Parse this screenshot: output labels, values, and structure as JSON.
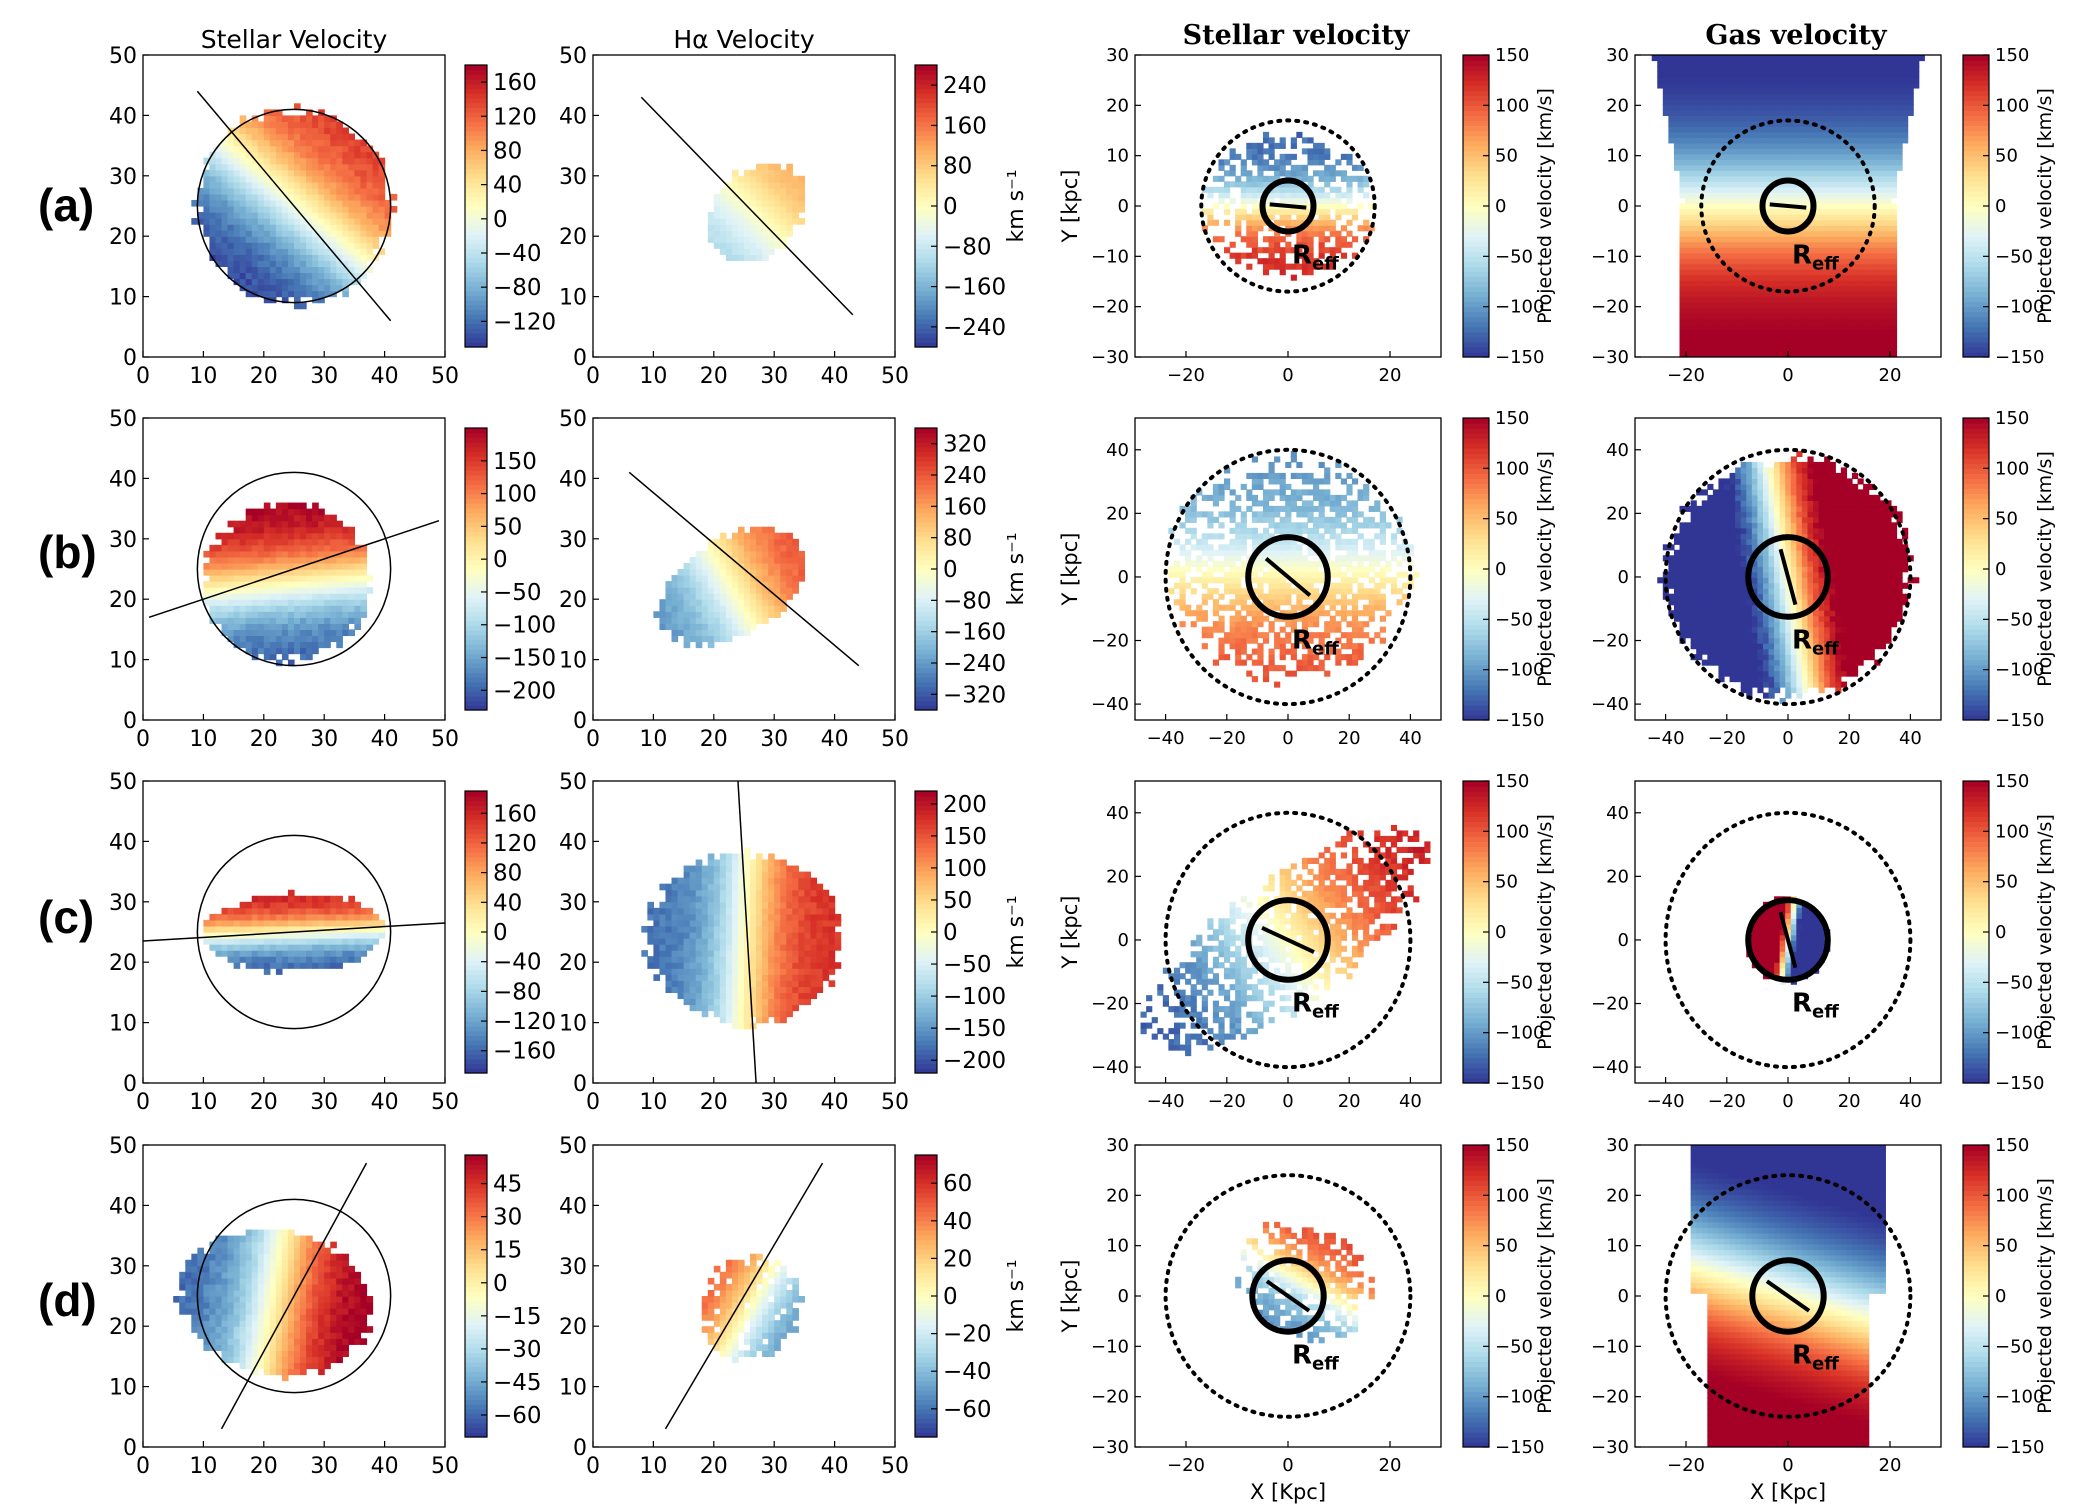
{
  "figure": {
    "row_labels": [
      "(a)",
      "(b)",
      "(c)",
      "(d)"
    ],
    "column_titles": [
      "Stellar Velocity",
      "Hα Velocity",
      "Stellar velocity",
      "Gas velocity"
    ],
    "pixel_axis_ticks": [
      "0",
      "10",
      "20",
      "30",
      "40",
      "50"
    ],
    "manga_colorbar_label": "km s⁻¹",
    "sim_colorbar_label": "Projected velocity [km/s]",
    "sim_colorbar_ticks": [
      "150",
      "100",
      "50",
      "0",
      "−50",
      "−100",
      "−150"
    ],
    "sim_ylabel": "Y [kpc]",
    "sim_xlabel": "X [Kpc]",
    "reff_label": "R",
    "reff_sub": "eff"
  },
  "chart_data": [
    {
      "id": "a1",
      "type": "heatmap",
      "row": "(a)",
      "title": "Stellar Velocity",
      "xlim": [
        0,
        50
      ],
      "ylim": [
        0,
        50
      ],
      "xticks": [
        "0",
        "10",
        "20",
        "30",
        "40",
        "50"
      ],
      "yticks": [
        "0",
        "10",
        "20",
        "30",
        "40",
        "50"
      ],
      "colorbar_ticks": [
        "160",
        "120",
        "80",
        "40",
        "0",
        "−40",
        "−80",
        "−120"
      ],
      "colorbar_range": [
        -150,
        180
      ],
      "colorbar_label": "",
      "circle": {
        "cx": 25,
        "cy": 25,
        "r": 16
      },
      "pa_line": [
        [
          9,
          44
        ],
        [
          41,
          6
        ]
      ],
      "map": {
        "cx": 25,
        "cy": 25,
        "rx": 16,
        "ry": 16,
        "angle": 50,
        "vmax": 150,
        "sig": 0.6,
        "q": 0.5
      }
    },
    {
      "id": "a2",
      "type": "heatmap",
      "row": "(a)",
      "title": "Hα Velocity",
      "xlim": [
        0,
        50
      ],
      "ylim": [
        0,
        50
      ],
      "xticks": [
        "0",
        "10",
        "20",
        "30",
        "40",
        "50"
      ],
      "yticks": [
        "0",
        "10",
        "20",
        "30",
        "40",
        "50"
      ],
      "colorbar_ticks": [
        "240",
        "160",
        "80",
        "0",
        "−80",
        "−160",
        "−240"
      ],
      "colorbar_range": [
        -280,
        280
      ],
      "colorbar_label": "km s⁻¹",
      "pa_line": [
        [
          8,
          43
        ],
        [
          43,
          7
        ]
      ],
      "map": {
        "cx": 27,
        "cy": 24,
        "rx": 9,
        "ry": 7,
        "angle": 45,
        "vmax": 130,
        "sig": 0.9,
        "q": 0.45,
        "tilt": 35
      }
    },
    {
      "id": "a3",
      "type": "heatmap",
      "row": "(a)",
      "title": "Stellar velocity",
      "xlim": [
        -30,
        30
      ],
      "ylim": [
        -30,
        30
      ],
      "xticks": [
        "−20",
        "0",
        "20"
      ],
      "yticks": [
        "30",
        "20",
        "10",
        "0",
        "−10",
        "−20",
        "−30"
      ],
      "colorbar_ticks": [
        "150",
        "100",
        "50",
        "0",
        "−50",
        "−100",
        "−150"
      ],
      "colorbar_range": [
        -150,
        150
      ],
      "colorbar_label": "Projected velocity [km/s]",
      "dotted_circle_r": 17,
      "reff_r": 5,
      "reff_angle": -5,
      "ylabel": "Y [kpc]",
      "map": {
        "cx": 0,
        "cy": 0,
        "rx": 14,
        "ry": 17,
        "angle": -90,
        "vmax": 130,
        "sig": 0.5,
        "q": 0.7
      }
    },
    {
      "id": "a4",
      "type": "heatmap",
      "row": "(a)",
      "title": "Gas velocity",
      "xlim": [
        -30,
        30
      ],
      "ylim": [
        -30,
        30
      ],
      "xticks": [
        "−20",
        "0",
        "20"
      ],
      "yticks": [
        "30",
        "20",
        "10",
        "0",
        "−10",
        "−20",
        "−30"
      ],
      "colorbar_ticks": [
        "150",
        "100",
        "50",
        "0",
        "−50",
        "−100",
        "−150"
      ],
      "colorbar_range": [
        -150,
        150
      ],
      "colorbar_label": "Projected velocity [km/s]",
      "dotted_circle_r": 17,
      "reff_r": 5,
      "reff_angle": -5,
      "map": {
        "type": "gas",
        "angle": -90,
        "vmax": 160,
        "sig": 0.4,
        "q": 0.5
      }
    },
    {
      "id": "b1",
      "type": "heatmap",
      "row": "(b)",
      "title": "Stellar Velocity",
      "xlim": [
        0,
        50
      ],
      "ylim": [
        0,
        50
      ],
      "xticks": [
        "0",
        "10",
        "20",
        "30",
        "40",
        "50"
      ],
      "yticks": [
        "0",
        "10",
        "20",
        "30",
        "40",
        "50"
      ],
      "colorbar_ticks": [
        "150",
        "100",
        "50",
        "0",
        "−50",
        "−100",
        "−150",
        "−200"
      ],
      "colorbar_range": [
        -230,
        200
      ],
      "colorbar_label": "",
      "circle": {
        "cx": 25,
        "cy": 25,
        "r": 16
      },
      "pa_line": [
        [
          1,
          17
        ],
        [
          49,
          33
        ]
      ],
      "map": {
        "cx": 24,
        "cy": 23,
        "rx": 13,
        "ry": 14,
        "angle": 95,
        "vmax": 210,
        "sig": 0.6,
        "q": 0.5
      }
    },
    {
      "id": "b2",
      "type": "heatmap",
      "row": "(b)",
      "title": "Hα Velocity",
      "xlim": [
        0,
        50
      ],
      "ylim": [
        0,
        50
      ],
      "xticks": [
        "0",
        "10",
        "20",
        "30",
        "40",
        "50"
      ],
      "yticks": [
        "0",
        "10",
        "20",
        "30",
        "40",
        "50"
      ],
      "colorbar_ticks": [
        "320",
        "240",
        "160",
        "80",
        "0",
        "−80",
        "−160",
        "−240",
        "−320"
      ],
      "colorbar_range": [
        -360,
        360
      ],
      "colorbar_label": "km s⁻¹",
      "pa_line": [
        [
          6,
          41
        ],
        [
          44,
          9
        ]
      ],
      "map": {
        "cx": 23,
        "cy": 22,
        "rx": 13,
        "ry": 8,
        "angle": 30,
        "vmax": 270,
        "sig": 0.7,
        "q": 0.45,
        "tilt": 35
      }
    },
    {
      "id": "b3",
      "type": "heatmap",
      "row": "(b)",
      "title": "Stellar velocity",
      "xlim": [
        -50,
        50
      ],
      "ylim": [
        -45,
        50
      ],
      "xticks": [
        "−40",
        "−20",
        "0",
        "20",
        "40"
      ],
      "yticks": [
        "40",
        "20",
        "0",
        "−20",
        "−40"
      ],
      "colorbar_ticks": [
        "150",
        "100",
        "50",
        "0",
        "−50",
        "−100",
        "−150"
      ],
      "colorbar_range": [
        -150,
        150
      ],
      "colorbar_label": "Projected velocity [km/s]",
      "dotted_circle_r": 40,
      "reff_r": 13,
      "reff_angle": -40,
      "ylabel": "Y [kpc]",
      "map": {
        "cx": 0,
        "cy": 2,
        "rx": 35,
        "ry": 40,
        "angle": -90,
        "vmax": 110,
        "sig": 0.6,
        "q": 0.85
      }
    },
    {
      "id": "b4",
      "type": "heatmap",
      "row": "(b)",
      "title": "Gas velocity",
      "xlim": [
        -50,
        50
      ],
      "ylim": [
        -45,
        50
      ],
      "xticks": [
        "−40",
        "−20",
        "0",
        "20",
        "40"
      ],
      "yticks": [
        "40",
        "20",
        "0",
        "−20",
        "−40"
      ],
      "colorbar_ticks": [
        "150",
        "100",
        "50",
        "0",
        "−50",
        "−100",
        "−150"
      ],
      "colorbar_range": [
        -150,
        150
      ],
      "colorbar_label": "Projected velocity [km/s]",
      "dotted_circle_r": 40,
      "reff_r": 13,
      "reff_angle": -75,
      "map": {
        "cx": 0,
        "cy": 0,
        "rx": 40,
        "ry": 37,
        "angle": 10,
        "vmax": 200,
        "sig": 0.35,
        "q": 0.8
      }
    },
    {
      "id": "c1",
      "type": "heatmap",
      "row": "(c)",
      "title": "Stellar Velocity",
      "xlim": [
        0,
        50
      ],
      "ylim": [
        0,
        50
      ],
      "xticks": [
        "0",
        "10",
        "20",
        "30",
        "40",
        "50"
      ],
      "yticks": [
        "0",
        "10",
        "20",
        "30",
        "40",
        "50"
      ],
      "colorbar_ticks": [
        "160",
        "120",
        "80",
        "40",
        "0",
        "−40",
        "−80",
        "−120",
        "−160"
      ],
      "colorbar_range": [
        -190,
        190
      ],
      "colorbar_label": "",
      "circle": {
        "cx": 25,
        "cy": 25,
        "r": 16
      },
      "pa_line": [
        [
          0,
          23.5
        ],
        [
          50,
          26.5
        ]
      ],
      "map": {
        "cx": 25,
        "cy": 25,
        "rx": 6.5,
        "ry": 15,
        "angle": 92,
        "vmax": 170,
        "sig": 0.55,
        "q": 0.6
      }
    },
    {
      "id": "c2",
      "type": "heatmap",
      "row": "(c)",
      "title": "Hα Velocity",
      "xlim": [
        0,
        50
      ],
      "ylim": [
        0,
        50
      ],
      "xticks": [
        "0",
        "10",
        "20",
        "30",
        "40",
        "50"
      ],
      "yticks": [
        "0",
        "10",
        "20",
        "30",
        "40",
        "50"
      ],
      "colorbar_ticks": [
        "200",
        "150",
        "100",
        "50",
        "0",
        "−50",
        "−100",
        "−150",
        "−200"
      ],
      "colorbar_range": [
        -220,
        220
      ],
      "colorbar_label": "km s⁻¹",
      "pa_line": [
        [
          24,
          50
        ],
        [
          27,
          0
        ]
      ],
      "map": {
        "cx": 25,
        "cy": 24,
        "rx": 16,
        "ry": 14,
        "angle": -3,
        "vmax": 180,
        "sig": 0.45,
        "q": 0.5
      }
    },
    {
      "id": "c3",
      "type": "heatmap",
      "row": "(c)",
      "title": "Stellar velocity",
      "xlim": [
        -50,
        50
      ],
      "ylim": [
        -45,
        50
      ],
      "xticks": [
        "−40",
        "−20",
        "0",
        "20",
        "40"
      ],
      "yticks": [
        "40",
        "20",
        "0",
        "−20",
        "−40"
      ],
      "colorbar_ticks": [
        "150",
        "100",
        "50",
        "0",
        "−50",
        "−100",
        "−150"
      ],
      "colorbar_range": [
        -150,
        150
      ],
      "colorbar_label": "Projected velocity [km/s]",
      "dotted_circle_r": 40,
      "reff_r": 13,
      "reff_angle": -25,
      "ylabel": "Y [kpc]",
      "map": {
        "cx": 0,
        "cy": 0,
        "rx": 55,
        "ry": 20,
        "angle": 35,
        "vmax": 140,
        "sig": 0.6,
        "q": 0.7
      }
    },
    {
      "id": "c4",
      "type": "heatmap",
      "row": "(c)",
      "title": "Gas velocity",
      "xlim": [
        -50,
        50
      ],
      "ylim": [
        -45,
        50
      ],
      "xticks": [
        "−40",
        "−20",
        "0",
        "20",
        "40"
      ],
      "yticks": [
        "40",
        "20",
        "0",
        "−20",
        "−40"
      ],
      "colorbar_ticks": [
        "150",
        "100",
        "50",
        "0",
        "−50",
        "−100",
        "−150"
      ],
      "colorbar_range": [
        -150,
        150
      ],
      "colorbar_label": "Projected velocity [km/s]",
      "dotted_circle_r": 40,
      "reff_r": 13,
      "reff_angle": -75,
      "map": {
        "cx": 0,
        "cy": 0,
        "rx": 13,
        "ry": 13,
        "angle": 170,
        "vmax": 220,
        "sig": 0.25,
        "q": 0.8
      }
    },
    {
      "id": "d1",
      "type": "heatmap",
      "row": "(d)",
      "title": "Stellar Velocity",
      "xlim": [
        0,
        50
      ],
      "ylim": [
        0,
        50
      ],
      "xticks": [
        "0",
        "10",
        "20",
        "30",
        "40",
        "50"
      ],
      "yticks": [
        "0",
        "10",
        "20",
        "30",
        "40",
        "50"
      ],
      "colorbar_ticks": [
        "45",
        "30",
        "15",
        "0",
        "−15",
        "−30",
        "−45",
        "−60"
      ],
      "colorbar_range": [
        -70,
        58
      ],
      "colorbar_label": "",
      "circle": {
        "cx": 25,
        "cy": 25,
        "r": 16
      },
      "pa_line": [
        [
          13,
          3
        ],
        [
          37,
          47
        ]
      ],
      "map": {
        "cx": 22,
        "cy": 24,
        "rx": 16,
        "ry": 12,
        "angle": -10,
        "vmax": 62,
        "sig": 0.55,
        "q": 0.55
      }
    },
    {
      "id": "d2",
      "type": "heatmap",
      "row": "(d)",
      "title": "Hα Velocity",
      "xlim": [
        0,
        50
      ],
      "ylim": [
        0,
        50
      ],
      "xticks": [
        "0",
        "10",
        "20",
        "30",
        "40",
        "50"
      ],
      "yticks": [
        "0",
        "10",
        "20",
        "30",
        "40",
        "50"
      ],
      "colorbar_ticks": [
        "60",
        "40",
        "20",
        "0",
        "−20",
        "−40",
        "−60"
      ],
      "colorbar_range": [
        -75,
        75
      ],
      "colorbar_label": "km s⁻¹",
      "pa_line": [
        [
          12,
          3
        ],
        [
          38,
          47
        ]
      ],
      "map": {
        "cx": 26,
        "cy": 23,
        "rx": 8,
        "ry": 9,
        "angle": 150,
        "vmax": 55,
        "sig": 0.8,
        "q": 0.5,
        "sparse": true
      }
    },
    {
      "id": "d3",
      "type": "heatmap",
      "row": "(d)",
      "title": "Stellar velocity",
      "xlim": [
        -30,
        30
      ],
      "ylim": [
        -30,
        30
      ],
      "xticks": [
        "−20",
        "0",
        "20"
      ],
      "yticks": [
        "30",
        "20",
        "10",
        "0",
        "−10",
        "−20",
        "−30"
      ],
      "colorbar_ticks": [
        "150",
        "100",
        "50",
        "0",
        "−50",
        "−100",
        "−150"
      ],
      "colorbar_range": [
        -150,
        150
      ],
      "colorbar_label": "Projected velocity [km/s]",
      "dotted_circle_r": 24,
      "reff_r": 7,
      "reff_angle": -35,
      "ylabel": "Y [kpc]",
      "xlabel": "X [Kpc]",
      "map": {
        "cx": 3,
        "cy": 3,
        "rx": 11,
        "ry": 14,
        "angle": 60,
        "vmax": 110,
        "sig": 0.55,
        "q": 0.7
      }
    },
    {
      "id": "d4",
      "type": "heatmap",
      "row": "(d)",
      "title": "Gas velocity",
      "xlim": [
        -30,
        30
      ],
      "ylim": [
        -30,
        30
      ],
      "xticks": [
        "−20",
        "0",
        "20"
      ],
      "yticks": [
        "30",
        "20",
        "10",
        "0",
        "−10",
        "−20",
        "−30"
      ],
      "colorbar_ticks": [
        "150",
        "100",
        "50",
        "0",
        "−50",
        "−100",
        "−150"
      ],
      "colorbar_range": [
        -150,
        150
      ],
      "colorbar_label": "Projected velocity [km/s]",
      "dotted_circle_r": 24,
      "reff_r": 7,
      "reff_angle": -35,
      "xlabel": "X [Kpc]",
      "map": {
        "type": "gas2",
        "angle": 90,
        "vmax": 170,
        "sig": 0.35,
        "q": 0.5
      }
    }
  ]
}
